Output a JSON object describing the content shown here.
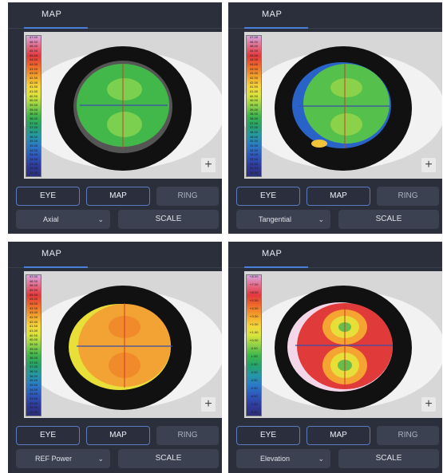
{
  "scale_labels": [
    "47.00",
    "46.50",
    "46.00",
    "45.50",
    "45.00",
    "44.50",
    "44.00",
    "43.50",
    "43.00",
    "42.50",
    "42.00",
    "41.50",
    "41.00",
    "40.50",
    "40.00",
    "39.50",
    "39.00",
    "38.50",
    "38.00",
    "37.50",
    "37.00",
    "36.50",
    "36.00",
    "35.50",
    "35.00",
    "34.50",
    "34.00",
    "33.50",
    "33.00",
    "32.50",
    "32.00"
  ],
  "scale_labels_elevation": [
    "+8.50",
    "+7.50",
    "+6.50",
    "+5.50",
    "+4.50",
    "+3.50",
    "+2.50",
    "+1.50",
    "+0.50",
    "-0.50",
    "-1.50",
    "-2.50",
    "-3.50",
    "-4.50",
    "-5.50",
    "-6.50",
    "-7.50",
    "-8.50"
  ],
  "scale_colors": [
    "#d6a7e0",
    "#e46b8a",
    "#e3383e",
    "#ee6a2a",
    "#f3a02c",
    "#f6d43a",
    "#d8e43c",
    "#8cd048",
    "#3fb64d",
    "#26a36b",
    "#2597a8",
    "#2b78c8",
    "#2f56bb",
    "#2f3a9a",
    "#2c2f78"
  ],
  "colors": {
    "panel_bg": "#2b2f3b",
    "accent": "#4a7fd8"
  },
  "panels": [
    {
      "tabs": {
        "map": "MAP",
        "second": ""
      },
      "buttons": {
        "eye": "EYE",
        "map": "MAP",
        "ring": "RING"
      },
      "dropdown": {
        "value": "Axial",
        "chevron": "⌄"
      },
      "scale_button": "SCALE",
      "zoom": "+",
      "map_colors": {
        "base": "#43b84a",
        "alt": "#7bd04f",
        "edge": "#2fae52"
      }
    },
    {
      "tabs": {
        "map": "MAP",
        "second": ""
      },
      "buttons": {
        "eye": "EYE",
        "map": "MAP",
        "ring": "RING"
      },
      "dropdown": {
        "value": "Tangential",
        "chevron": "⌄"
      },
      "scale_button": "SCALE",
      "zoom": "+",
      "map_colors": {
        "base": "#56c04c",
        "alt": "#8bd24a",
        "edge": "#2a63c7"
      }
    },
    {
      "tabs": {
        "map": "MAP",
        "second": ""
      },
      "buttons": {
        "eye": "EYE",
        "map": "MAP",
        "ring": "RING"
      },
      "dropdown": {
        "value": "REF Power",
        "chevron": "⌄"
      },
      "scale_button": "SCALE",
      "zoom": "+",
      "map_colors": {
        "base": "#f2a334",
        "alt": "#f08a2a",
        "edge": "#e8e038"
      }
    },
    {
      "tabs": {
        "map": "MAP",
        "second": ""
      },
      "buttons": {
        "eye": "EYE",
        "map": "MAP",
        "ring": "RING"
      },
      "dropdown": {
        "value": "Elevation",
        "chevron": "⌄"
      },
      "scale_button": "SCALE",
      "zoom": "+",
      "map_colors": {
        "base": "#e13a3a",
        "alt": "#f5a331",
        "edge": "#66bd4a"
      }
    }
  ]
}
